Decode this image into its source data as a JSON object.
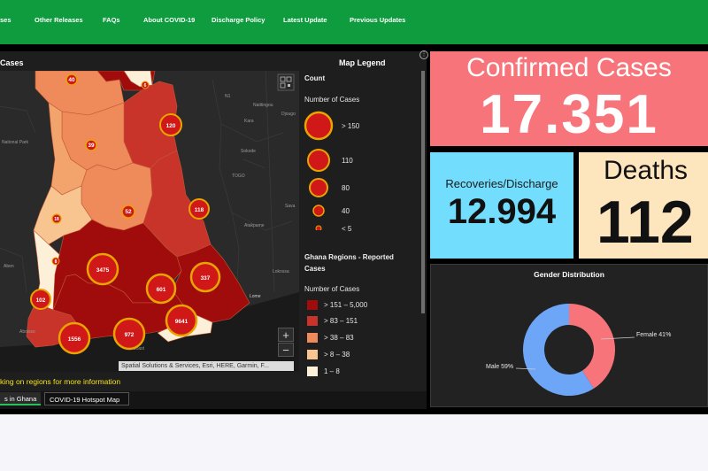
{
  "nav": {
    "items": [
      "ses",
      "Other Releases",
      "FAQs",
      "About COVID-19",
      "Discharge Policy",
      "Latest Update",
      "Previous Updates"
    ]
  },
  "map_panel": {
    "title": "Cases",
    "legend_title": "Map Legend",
    "legend": {
      "count_label": "Count",
      "num_cases_label": "Number of Cases",
      "circle_sizes": [
        "> 150",
        "110",
        "80",
        "40",
        "< 5"
      ],
      "regions_title": "Ghana Regions - Reported Cases",
      "regions_num_label": "Number of Cases",
      "ranges": [
        {
          "label": "> 151 – 5,000",
          "color": "#a00c0c"
        },
        {
          "label": "> 83 – 151",
          "color": "#c8342a"
        },
        {
          "label": "> 38 – 83",
          "color": "#ef8a5a"
        },
        {
          "label": "> 8 – 38",
          "color": "#f8c48f"
        },
        {
          "label": "1 – 8",
          "color": "#fdf0d8"
        }
      ]
    },
    "info_text": "king on regions for more information",
    "attribution": "Spatial Solutions & Services, Esri, HERE, Garmin, F...",
    "zoom_in": "+",
    "zoom_out": "−",
    "places": [
      "Natitingou",
      "Djougo",
      "Kara",
      "Sokode",
      "TOGO",
      "Atakpame",
      "Lome",
      "Lokossa",
      "Aboisso",
      "National Park",
      "Aben",
      "Coast",
      "Sava",
      "N1"
    ],
    "clusters": [
      "40",
      "6",
      "120",
      "39",
      "118",
      "52",
      "18",
      "8",
      "3475",
      "337",
      "601",
      "102",
      "9641",
      "972",
      "1556"
    ]
  },
  "tabs": [
    "s in Ghana",
    "COVID-19 Hotspot Map"
  ],
  "stats": {
    "confirmed_label": "Confirmed Cases",
    "confirmed_value": "17.351",
    "recoveries_label": "Recoveries/Discharge",
    "recoveries_value": "12.994",
    "deaths_label": "Deaths",
    "deaths_value": "112"
  },
  "gender": {
    "title": "Gender Distribution",
    "female_label": "Female 41%",
    "male_label": "Male 59%",
    "female_pct": 41,
    "male_pct": 59,
    "female_color": "#f7747a",
    "male_color": "#6ea6f7"
  },
  "colors": {
    "nav_bg": "#0e9c3e",
    "confirmed_bg": "#f7747a",
    "recoveries_bg": "#73ddfd",
    "deaths_bg": "#fde5bd"
  }
}
